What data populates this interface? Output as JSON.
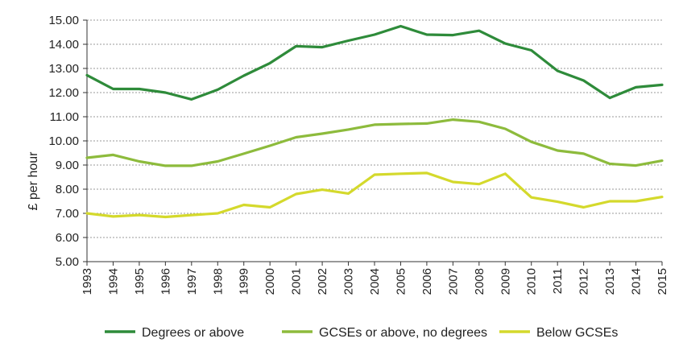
{
  "chart_data": {
    "type": "line",
    "title": "",
    "xlabel": "",
    "ylabel": "£ per hour",
    "ylim": [
      5.0,
      15.0
    ],
    "y_ticks": [
      "5.00",
      "6.00",
      "7.00",
      "8.00",
      "9.00",
      "10.00",
      "11.00",
      "12.00",
      "13.00",
      "14.00",
      "15.00"
    ],
    "grid": "horizontal-dashed",
    "legend_position": "bottom",
    "x": [
      "1993",
      "1994",
      "1995",
      "1996",
      "1997",
      "1998",
      "1999",
      "2000",
      "2001",
      "2002",
      "2003",
      "2004",
      "2005",
      "2006",
      "2007",
      "2008",
      "2009",
      "2010",
      "2011",
      "2012",
      "2013",
      "2014",
      "2015"
    ],
    "series": [
      {
        "name": "Degrees or above",
        "color": "#2e8b3a",
        "values": [
          12.72,
          12.15,
          12.15,
          12.0,
          11.72,
          12.12,
          12.7,
          13.22,
          13.92,
          13.88,
          14.15,
          14.4,
          14.75,
          14.4,
          14.38,
          14.56,
          14.03,
          13.75,
          12.9,
          12.5,
          11.78,
          12.22,
          12.32
        ]
      },
      {
        "name": "GCSEs or above, no degrees",
        "color": "#8dbb3c",
        "values": [
          9.3,
          9.42,
          9.15,
          8.97,
          8.97,
          9.15,
          9.47,
          9.8,
          10.15,
          10.3,
          10.47,
          10.67,
          10.7,
          10.72,
          10.88,
          10.79,
          10.5,
          9.96,
          9.6,
          9.47,
          9.05,
          8.98,
          9.18
        ]
      },
      {
        "name": "Below GCSEs",
        "color": "#d4d92c",
        "values": [
          7.0,
          6.87,
          6.93,
          6.85,
          6.93,
          7.0,
          7.35,
          7.25,
          7.8,
          7.98,
          7.82,
          8.6,
          8.64,
          8.67,
          8.3,
          8.21,
          8.64,
          7.66,
          7.48,
          7.25,
          7.5,
          7.5,
          7.68
        ]
      }
    ]
  }
}
